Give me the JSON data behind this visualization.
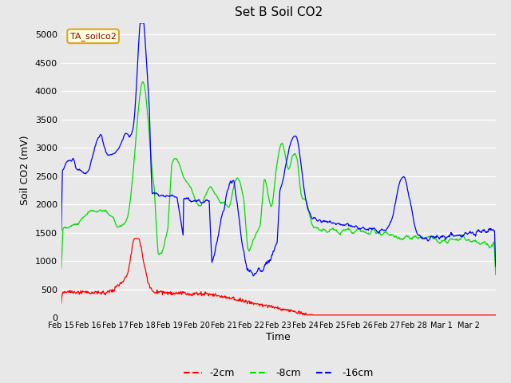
{
  "title": "Set B Soil CO2",
  "ylabel": "Soil CO2 (mV)",
  "xlabel": "Time",
  "annotation": "TA_soilco2",
  "ylim": [
    0,
    5200
  ],
  "yticks": [
    0,
    500,
    1000,
    1500,
    2000,
    2500,
    3000,
    3500,
    4000,
    4500,
    5000
  ],
  "colors": {
    "red": "#FF0000",
    "green": "#00DD00",
    "blue": "#0000FF",
    "bg": "#E8E8E8"
  },
  "legend": [
    {
      "label": "-2cm",
      "color": "#FF0000"
    },
    {
      "label": "-8cm",
      "color": "#00DD00"
    },
    {
      "label": "-16cm",
      "color": "#0000FF"
    }
  ],
  "x_tick_labels": [
    "Feb 15",
    "Feb 16",
    "Feb 17",
    "Feb 18",
    "Feb 19",
    "Feb 20",
    "Feb 21",
    "Feb 22",
    "Feb 23",
    "Feb 24",
    "Feb 25",
    "Feb 26",
    "Feb 27",
    "Feb 28",
    "Mar 1",
    "Mar 2"
  ],
  "figsize": [
    6.4,
    4.8
  ],
  "dpi": 100
}
